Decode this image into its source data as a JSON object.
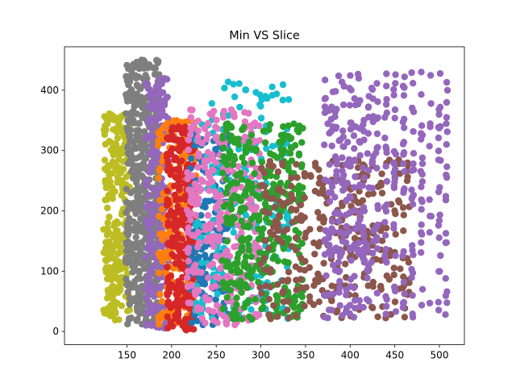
{
  "chart_data": {
    "type": "scatter",
    "title": "Min VS Slice",
    "xlabel": "",
    "ylabel": "",
    "xlim": [
      80,
      528
    ],
    "ylim": [
      -22,
      472
    ],
    "x_ticks": [
      150,
      200,
      250,
      300,
      350,
      400,
      450,
      500
    ],
    "y_ticks": [
      0,
      100,
      200,
      300,
      400
    ],
    "grid": false,
    "series": [
      {
        "color": "#bcbd22",
        "x": [
          125,
          127,
          128,
          130,
          131,
          133,
          134,
          136,
          137,
          139,
          140,
          142,
          143,
          145,
          146,
          148,
          150,
          152
        ],
        "y_min": 18,
        "y_max": 362,
        "count": 260
      },
      {
        "color": "#7f7f7f",
        "x": [
          150,
          152,
          154,
          156,
          158,
          160,
          162,
          164,
          166,
          168,
          170,
          172,
          174,
          176,
          178,
          180,
          182,
          184,
          186
        ],
        "y_min": 12,
        "y_max": 450,
        "count": 520
      },
      {
        "color": "#9467bd",
        "x": [
          172,
          175,
          178,
          180,
          183,
          186,
          188,
          190,
          193,
          196
        ],
        "y_min": 5,
        "y_max": 420,
        "count": 220
      },
      {
        "color": "#ff7f0e",
        "x": [
          186,
          190,
          194,
          198,
          202,
          206,
          210,
          214,
          218,
          222,
          226
        ],
        "y_min": 10,
        "y_max": 350,
        "count": 240
      },
      {
        "color": "#d62728",
        "x": [
          196,
          200,
          204,
          208,
          212,
          216,
          220,
          224
        ],
        "y_min": 2,
        "y_max": 342,
        "count": 280
      },
      {
        "color": "#1f77b4",
        "x": [
          222,
          226,
          230,
          234,
          238,
          242,
          246,
          250,
          254,
          258,
          262
        ],
        "y_min": 8,
        "y_max": 330,
        "count": 160
      },
      {
        "color": "#17becf",
        "x": [
          228,
          234,
          240,
          246,
          252,
          258,
          264,
          270,
          276,
          282,
          288,
          294,
          300,
          306,
          312,
          318,
          324,
          330
        ],
        "y_min": 20,
        "y_max": 415,
        "count": 200
      },
      {
        "color": "#e377c2",
        "x": [
          218,
          222,
          226,
          230,
          234,
          238,
          242,
          246,
          250,
          254,
          258,
          262,
          266,
          270,
          274,
          278,
          282,
          286,
          290,
          294,
          298
        ],
        "y_min": 10,
        "y_max": 368,
        "count": 320
      },
      {
        "color": "#2ca02c",
        "x": [
          258,
          262,
          266,
          270,
          274,
          278,
          282,
          286,
          290,
          294,
          298,
          302,
          306,
          310,
          314,
          318,
          322,
          326,
          330,
          334,
          338,
          342,
          346
        ],
        "y_min": 20,
        "y_max": 345,
        "count": 360
      },
      {
        "color": "#8c564b",
        "x": [
          300,
          305,
          310,
          315,
          320,
          325,
          330,
          335,
          340,
          345,
          350,
          355,
          360,
          365,
          370,
          375,
          380,
          385,
          390,
          395,
          400,
          405,
          410,
          415,
          420,
          425,
          430,
          435,
          440,
          445,
          450,
          455,
          460,
          465
        ],
        "y_min": 20,
        "y_max": 285,
        "count": 320
      },
      {
        "color": "#9467bd",
        "x": [
          372,
          376,
          380,
          384,
          388,
          392,
          396,
          400,
          405,
          410,
          415,
          420,
          425,
          430,
          440,
          450,
          460,
          470,
          480,
          490,
          500,
          508
        ],
        "y_min": 22,
        "y_max": 430,
        "count": 420
      }
    ]
  }
}
